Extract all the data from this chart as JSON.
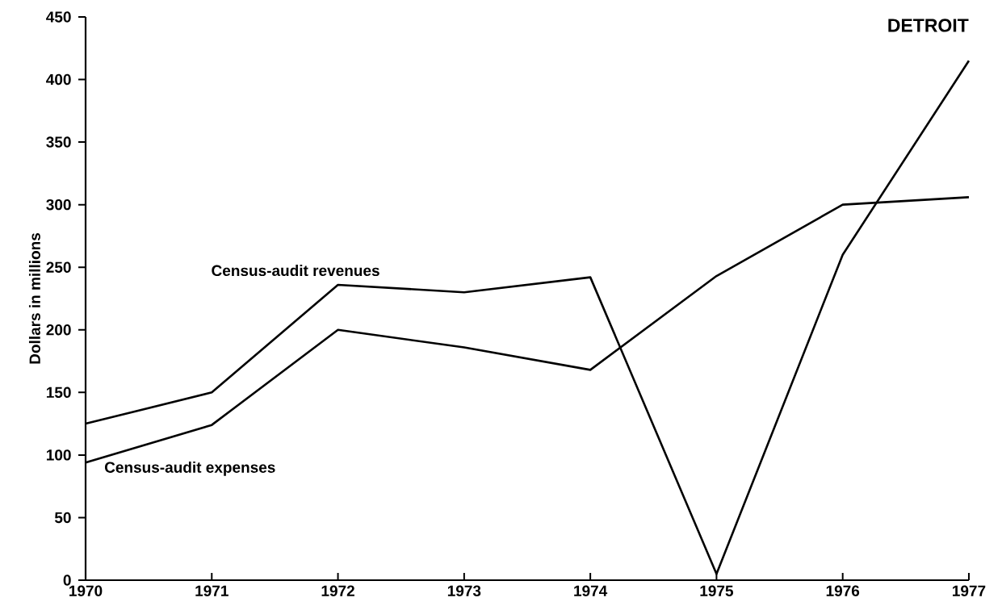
{
  "chart_data": {
    "type": "line",
    "title": "DETROIT",
    "ylabel": "Dollars in millions",
    "categories": [
      "1970",
      "1971",
      "1972",
      "1973",
      "1974",
      "1975",
      "1976",
      "1977"
    ],
    "series": [
      {
        "name": "Census-audit revenues",
        "color": "#000000",
        "values": [
          125,
          150,
          236,
          230,
          242,
          5,
          260,
          415
        ]
      },
      {
        "name": "Census-audit expenses",
        "color": "#000000",
        "values": [
          94,
          124,
          200,
          186,
          168,
          243,
          300,
          306
        ]
      }
    ],
    "ylim": [
      0,
      450
    ],
    "yticks": [
      0,
      50,
      100,
      150,
      200,
      250,
      300,
      350,
      400,
      450
    ],
    "grid": false,
    "legend": false,
    "marker": "none",
    "line_style": "solid"
  }
}
